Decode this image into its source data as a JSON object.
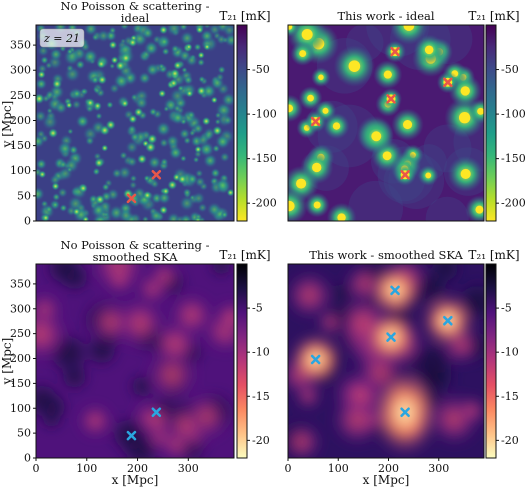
{
  "figure": {
    "redshift_label": "z = 21",
    "colorbar_label": "T₂₁ [mK]",
    "xlabel": "x [Mpc]",
    "ylabel": "y [Mpc]",
    "colors": {
      "viridis": [
        "#440154",
        "#482878",
        "#3e4989",
        "#31688e",
        "#26828e",
        "#1f9e89",
        "#35b779",
        "#6ece58",
        "#b5de2b",
        "#fde725"
      ],
      "magma": [
        "#000004",
        "#1c1044",
        "#4f127b",
        "#812581",
        "#b5367a",
        "#e55064",
        "#fb8861",
        "#fec287",
        "#fcfdbf"
      ],
      "cross_red": "#e8574a",
      "cross_cyan": "#2aa6e0"
    }
  },
  "chart_data": [
    {
      "type": "heatmap",
      "title_line1": "No Poisson & scattering -",
      "title_line2": "ideal",
      "colormap": "viridis",
      "xlim": [
        0,
        390
      ],
      "ylim": [
        0,
        390
      ],
      "xticks": [],
      "yticks": [
        "0",
        "50",
        "100",
        "150",
        "200",
        "250",
        "300",
        "350"
      ],
      "colorbar_range": [
        -220,
        0
      ],
      "colorbar_ticks": [
        "-50",
        "-100",
        "-150",
        "-200"
      ],
      "colorbar_values": [
        -50,
        -100,
        -150,
        -200
      ],
      "markers": [
        {
          "x": 188,
          "y": 45
        },
        {
          "x": 237,
          "y": 92
        }
      ],
      "marker_color": "cross_red",
      "show_redshift": true
    },
    {
      "type": "heatmap",
      "title_line1": "This work - ideal",
      "title_line2": "",
      "colormap": "viridis",
      "xlim": [
        0,
        390
      ],
      "ylim": [
        0,
        390
      ],
      "xticks": [],
      "yticks": [],
      "colorbar_range": [
        -220,
        0
      ],
      "colorbar_ticks": [
        "-50",
        "-100",
        "-150",
        "-200"
      ],
      "colorbar_values": [
        -50,
        -100,
        -150,
        -200
      ],
      "markers": [
        {
          "x": 213,
          "y": 337
        },
        {
          "x": 205,
          "y": 243
        },
        {
          "x": 318,
          "y": 276
        },
        {
          "x": 55,
          "y": 198
        },
        {
          "x": 233,
          "y": 92
        }
      ],
      "marker_color": "cross_red",
      "show_redshift": false
    },
    {
      "type": "heatmap",
      "title_line1": "No Poisson & scattering -",
      "title_line2": "smoothed SKA",
      "colormap": "magma",
      "xlim": [
        0,
        390
      ],
      "ylim": [
        0,
        390
      ],
      "xticks": [
        "0",
        "100",
        "200",
        "300"
      ],
      "yticks": [
        "0",
        "50",
        "100",
        "150",
        "200",
        "250",
        "300",
        "350"
      ],
      "colorbar_range": [
        -22,
        0
      ],
      "colorbar_ticks": [
        "-5",
        "-10",
        "-15",
        "-20"
      ],
      "colorbar_values": [
        -5,
        -10,
        -15,
        -20
      ],
      "markers": [
        {
          "x": 188,
          "y": 45
        },
        {
          "x": 237,
          "y": 92
        }
      ],
      "marker_color": "cross_cyan",
      "show_redshift": false
    },
    {
      "type": "heatmap",
      "title_line1": "This work - smoothed SKA",
      "title_line2": "",
      "colormap": "magma",
      "xlim": [
        0,
        390
      ],
      "ylim": [
        0,
        390
      ],
      "xticks": [
        "0",
        "100",
        "200",
        "300"
      ],
      "yticks": [],
      "colorbar_range": [
        -22,
        0
      ],
      "colorbar_ticks": [
        "-5",
        "-10",
        "-15",
        "-20"
      ],
      "colorbar_values": [
        -5,
        -10,
        -15,
        -20
      ],
      "markers": [
        {
          "x": 213,
          "y": 337
        },
        {
          "x": 205,
          "y": 243
        },
        {
          "x": 318,
          "y": 276
        },
        {
          "x": 55,
          "y": 198
        },
        {
          "x": 233,
          "y": 92
        }
      ],
      "marker_color": "cross_cyan",
      "show_redshift": false
    }
  ]
}
